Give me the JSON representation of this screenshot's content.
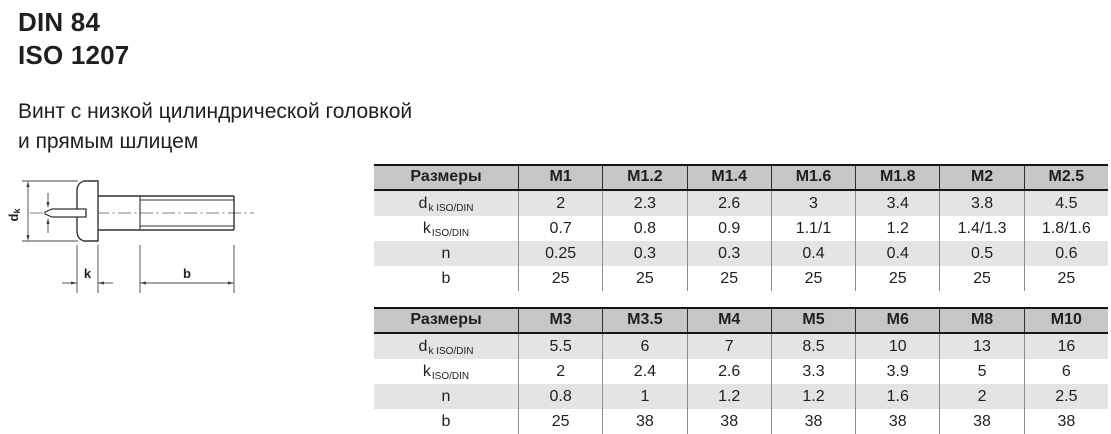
{
  "page": {
    "title_line1": "DIN 84",
    "title_line2": "ISO 1207",
    "description_line1": "Винт с низкой цилиндрической головкой",
    "description_line2": "и прямым шлицем"
  },
  "drawing": {
    "dk_main": "d",
    "dk_sub": "k",
    "k_label": "k",
    "b_label": "b"
  },
  "tables": [
    {
      "header": [
        "Размеры",
        "M1",
        "M1.2",
        "M1.4",
        "M1.6",
        "M1.8",
        "M2",
        "M2.5"
      ],
      "rows": [
        {
          "param_main": "d",
          "param_sub": "k ISO/DIN",
          "values": [
            "2",
            "2.3",
            "2.6",
            "3",
            "3.4",
            "3.8",
            "4.5"
          ]
        },
        {
          "param_main": "k",
          "param_sub": "ISO/DIN",
          "values": [
            "0.7",
            "0.8",
            "0.9",
            "1.1/1",
            "1.2",
            "1.4/1.3",
            "1.8/1.6"
          ]
        },
        {
          "param_main": "n",
          "param_sub": "",
          "values": [
            "0.25",
            "0.3",
            "0.3",
            "0.4",
            "0.4",
            "0.5",
            "0.6"
          ]
        },
        {
          "param_main": "b",
          "param_sub": "",
          "values": [
            "25",
            "25",
            "25",
            "25",
            "25",
            "25",
            "25"
          ]
        }
      ]
    },
    {
      "header": [
        "Размеры",
        "M3",
        "M3.5",
        "M4",
        "M5",
        "M6",
        "M8",
        "M10"
      ],
      "rows": [
        {
          "param_main": "d",
          "param_sub": "k ISO/DIN",
          "values": [
            "5.5",
            "6",
            "7",
            "8.5",
            "10",
            "13",
            "16"
          ]
        },
        {
          "param_main": "k",
          "param_sub": "ISO/DIN",
          "values": [
            "2",
            "2.4",
            "2.6",
            "3.3",
            "3.9",
            "5",
            "6"
          ]
        },
        {
          "param_main": "n",
          "param_sub": "",
          "values": [
            "0.8",
            "1",
            "1.2",
            "1.2",
            "1.6",
            "2",
            "2.5"
          ]
        },
        {
          "param_main": "b",
          "param_sub": "",
          "values": [
            "25",
            "38",
            "38",
            "38",
            "38",
            "38",
            "38"
          ]
        }
      ]
    }
  ],
  "colors": {
    "header_bg": "#c6c6c6",
    "row_shade_bg": "#e4e4e4",
    "border_dark": "#141414",
    "line_color": "#333333",
    "text_color": "#1f1f1f"
  }
}
